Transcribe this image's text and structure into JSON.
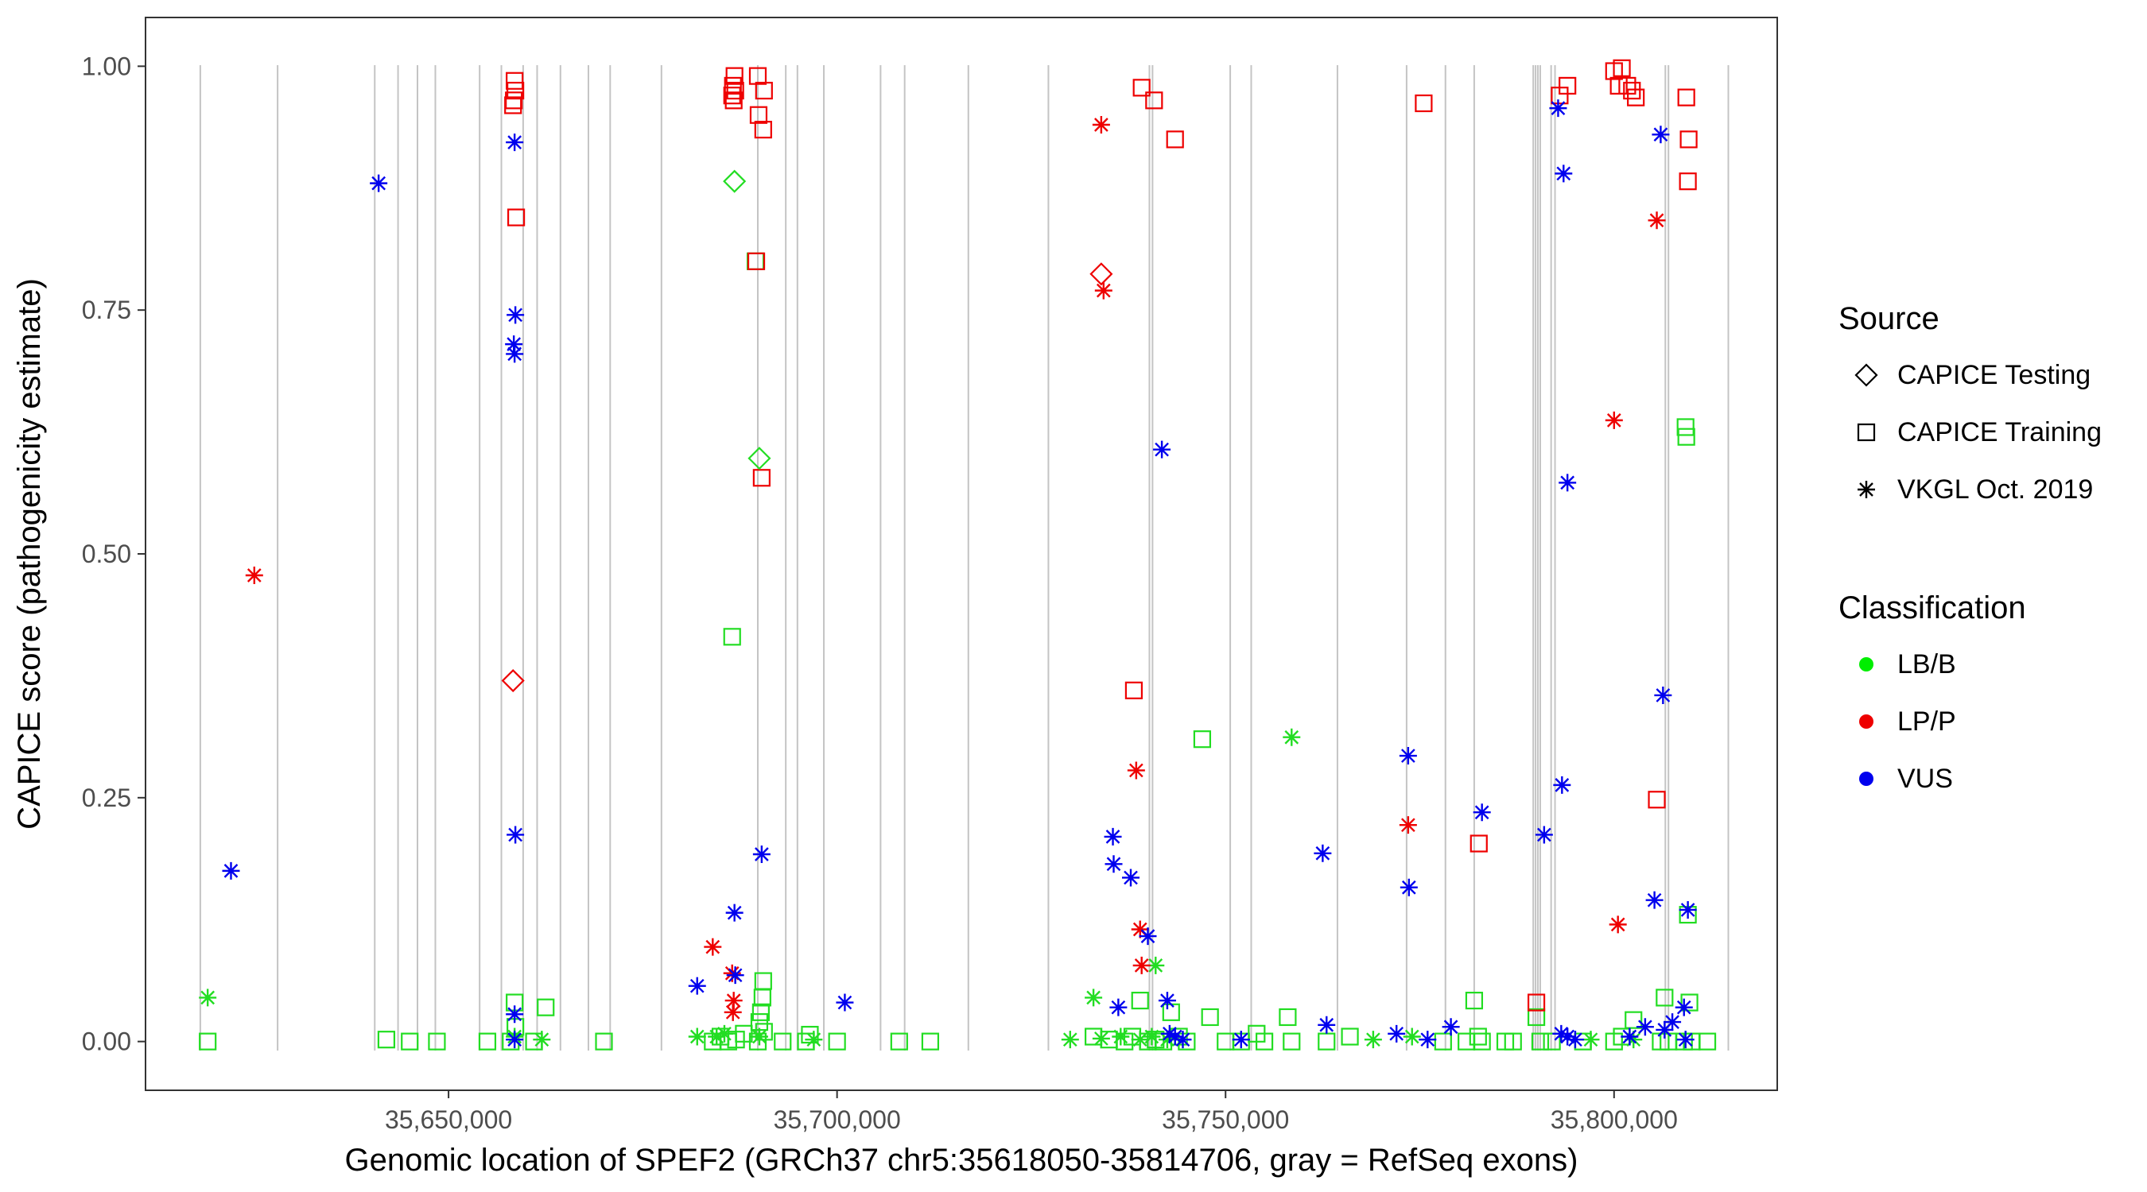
{
  "chart_data": {
    "type": "scatter",
    "title": "",
    "xlabel": "Genomic location of SPEF2 (GRCh37 chr5:35618050-35814706, gray = RefSeq exons)",
    "ylabel": "CAPICE score (pathogenicity estimate)",
    "xlim": [
      35611000,
      35821000
    ],
    "ylim": [
      -0.05,
      1.05
    ],
    "x_ticks": [
      35650000,
      35700000,
      35750000,
      35800000
    ],
    "x_tick_labels": [
      "35,650,000",
      "35,700,000",
      "35,750,000",
      "35,800,000"
    ],
    "y_ticks": [
      0.0,
      0.25,
      0.5,
      0.75,
      1.0
    ],
    "y_tick_labels": [
      "0.00",
      "0.25",
      "0.50",
      "0.75",
      "1.00"
    ],
    "grid": false,
    "legend_position": "right",
    "exons": [
      35618050,
      35628000,
      35640500,
      35643500,
      35646000,
      35648300,
      35654000,
      35656800,
      35659600,
      35661400,
      35664400,
      35668000,
      35670800,
      35677400,
      35689800,
      35693400,
      35694900,
      35698300,
      35705600,
      35708700,
      35716900,
      35727200,
      35740200,
      35740600,
      35750600,
      35753300,
      35764400,
      35773300,
      35778300,
      35782000,
      35789600,
      35789900,
      35790200,
      35790500,
      35791900,
      35792400,
      35806600,
      35807000,
      35814706
    ],
    "legends": {
      "source": {
        "title": "Source",
        "items": [
          {
            "label": "CAPICE Testing",
            "shape": "diamond"
          },
          {
            "label": "CAPICE Training",
            "shape": "square"
          },
          {
            "label": "VKGL Oct. 2019",
            "shape": "asterisk"
          }
        ]
      },
      "classification": {
        "title": "Classification",
        "items": [
          {
            "label": "LB/B",
            "color": "#00ee00"
          },
          {
            "label": "LP/P",
            "color": "#ee0000"
          },
          {
            "label": "VUS",
            "color": "#0000ee"
          }
        ]
      }
    },
    "series": [
      {
        "source": "CAPICE Training",
        "classification": "LB/B",
        "shape": "square",
        "color": "#22dd22",
        "points": [
          [
            35619000,
            0.0
          ],
          [
            35642000,
            0.002
          ],
          [
            35645000,
            0.0
          ],
          [
            35648500,
            0.0
          ],
          [
            35655000,
            0.0
          ],
          [
            35658000,
            0.0
          ],
          [
            35658500,
            0.04
          ],
          [
            35658600,
            0.015
          ],
          [
            35661000,
            0.0
          ],
          [
            35662500,
            0.035
          ],
          [
            35670000,
            0.0
          ],
          [
            35684000,
            0.0
          ],
          [
            35685000,
            0.005
          ],
          [
            35686000,
            0.0
          ],
          [
            35686500,
            0.415
          ],
          [
            35687000,
            0.002
          ],
          [
            35688000,
            0.008
          ],
          [
            35689500,
            0.8
          ],
          [
            35689800,
            0.0
          ],
          [
            35690000,
            0.02
          ],
          [
            35690200,
            0.03
          ],
          [
            35690400,
            0.045
          ],
          [
            35690500,
            0.062
          ],
          [
            35690600,
            0.01
          ],
          [
            35693000,
            0.0
          ],
          [
            35696000,
            0.0
          ],
          [
            35696500,
            0.007
          ],
          [
            35700000,
            0.0
          ],
          [
            35708000,
            0.0
          ],
          [
            35712000,
            0.0
          ],
          [
            35733000,
            0.005
          ],
          [
            35735000,
            0.002
          ],
          [
            35737000,
            0.0
          ],
          [
            35738000,
            0.005
          ],
          [
            35739000,
            0.042
          ],
          [
            35740000,
            0.0
          ],
          [
            35741000,
            0.002
          ],
          [
            35742000,
            0.0
          ],
          [
            35743000,
            0.03
          ],
          [
            35744000,
            0.005
          ],
          [
            35745000,
            0.0
          ],
          [
            35747000,
            0.31
          ],
          [
            35748000,
            0.025
          ],
          [
            35750000,
            0.0
          ],
          [
            35752000,
            0.0
          ],
          [
            35754000,
            0.008
          ],
          [
            35755000,
            0.0
          ],
          [
            35758000,
            0.025
          ],
          [
            35758500,
            0.0
          ],
          [
            35763000,
            0.0
          ],
          [
            35766000,
            0.005
          ],
          [
            35778000,
            0.0
          ],
          [
            35781000,
            0.0
          ],
          [
            35782000,
            0.042
          ],
          [
            35782500,
            0.005
          ],
          [
            35783000,
            0.0
          ],
          [
            35786000,
            0.0
          ],
          [
            35787000,
            0.0
          ],
          [
            35790000,
            0.025
          ],
          [
            35790500,
            0.0
          ],
          [
            35792000,
            0.0
          ],
          [
            35796000,
            0.0
          ],
          [
            35800000,
            0.0
          ],
          [
            35801000,
            0.005
          ],
          [
            35802500,
            0.022
          ],
          [
            35806000,
            0.0
          ],
          [
            35806500,
            0.045
          ],
          [
            35807000,
            0.0
          ],
          [
            35809000,
            0.0
          ],
          [
            35809200,
            0.63
          ],
          [
            35809300,
            0.62
          ],
          [
            35809500,
            0.13
          ],
          [
            35809700,
            0.04
          ],
          [
            35810000,
            0.0
          ],
          [
            35812000,
            0.0
          ]
        ]
      },
      {
        "source": "CAPICE Training",
        "classification": "LP/P",
        "shape": "square",
        "color": "#ee0000",
        "points": [
          [
            35658500,
            0.985
          ],
          [
            35658600,
            0.975
          ],
          [
            35658400,
            0.965
          ],
          [
            35658300,
            0.96
          ],
          [
            35658700,
            0.845
          ],
          [
            35686800,
            0.99
          ],
          [
            35686600,
            0.98
          ],
          [
            35686900,
            0.975
          ],
          [
            35686500,
            0.97
          ],
          [
            35686700,
            0.965
          ],
          [
            35689800,
            0.99
          ],
          [
            35690600,
            0.975
          ],
          [
            35689900,
            0.95
          ],
          [
            35690500,
            0.935
          ],
          [
            35689600,
            0.8
          ],
          [
            35690300,
            0.578
          ],
          [
            35738200,
            0.36
          ],
          [
            35739200,
            0.978
          ],
          [
            35740800,
            0.965
          ],
          [
            35743500,
            0.925
          ],
          [
            35775500,
            0.962
          ],
          [
            35782600,
            0.203
          ],
          [
            35790000,
            0.04
          ],
          [
            35793000,
            0.97
          ],
          [
            35794000,
            0.98
          ],
          [
            35800000,
            0.995
          ],
          [
            35800600,
            0.98
          ],
          [
            35801000,
            0.998
          ],
          [
            35801700,
            0.98
          ],
          [
            35802300,
            0.975
          ],
          [
            35802800,
            0.968
          ],
          [
            35805500,
            0.248
          ],
          [
            35809300,
            0.968
          ],
          [
            35809600,
            0.925
          ],
          [
            35809500,
            0.882
          ]
        ]
      },
      {
        "source": "CAPICE Testing",
        "classification": "LB/B",
        "shape": "diamond",
        "color": "#22dd22",
        "points": [
          [
            35686800,
            0.882
          ],
          [
            35690000,
            0.598
          ]
        ]
      },
      {
        "source": "CAPICE Testing",
        "classification": "LP/P",
        "shape": "diamond",
        "color": "#ee0000",
        "points": [
          [
            35658300,
            0.37
          ],
          [
            35734000,
            0.787
          ]
        ]
      },
      {
        "source": "VKGL Oct. 2019",
        "classification": "LB/B",
        "shape": "asterisk",
        "color": "#22dd22",
        "points": [
          [
            35619000,
            0.045
          ],
          [
            35658500,
            0.005
          ],
          [
            35662000,
            0.002
          ],
          [
            35682000,
            0.005
          ],
          [
            35684500,
            0.005
          ],
          [
            35685500,
            0.008
          ],
          [
            35690000,
            0.005
          ],
          [
            35697000,
            0.002
          ],
          [
            35730000,
            0.002
          ],
          [
            35733000,
            0.045
          ],
          [
            35734000,
            0.003
          ],
          [
            35736500,
            0.005
          ],
          [
            35739000,
            0.002
          ],
          [
            35740500,
            0.005
          ],
          [
            35741000,
            0.078
          ],
          [
            35742500,
            0.002
          ],
          [
            35758500,
            0.312
          ],
          [
            35769000,
            0.002
          ],
          [
            35774000,
            0.005
          ],
          [
            35797000,
            0.002
          ],
          [
            35802500,
            0.002
          ]
        ]
      },
      {
        "source": "VKGL Oct. 2019",
        "classification": "LP/P",
        "shape": "asterisk",
        "color": "#ee0000",
        "points": [
          [
            35625000,
            0.478
          ],
          [
            35684000,
            0.097
          ],
          [
            35686500,
            0.07
          ],
          [
            35686700,
            0.042
          ],
          [
            35686600,
            0.03
          ],
          [
            35734000,
            0.94
          ],
          [
            35734300,
            0.77
          ],
          [
            35738500,
            0.278
          ],
          [
            35739000,
            0.115
          ],
          [
            35739200,
            0.078
          ],
          [
            35773500,
            0.222
          ],
          [
            35800000,
            0.637
          ],
          [
            35800500,
            0.12
          ],
          [
            35805500,
            0.842
          ]
        ]
      },
      {
        "source": "VKGL Oct. 2019",
        "classification": "VUS",
        "shape": "asterisk",
        "color": "#0000ee",
        "points": [
          [
            35622000,
            0.175
          ],
          [
            35641000,
            0.88
          ],
          [
            35658500,
            0.922
          ],
          [
            35658600,
            0.745
          ],
          [
            35658400,
            0.715
          ],
          [
            35658500,
            0.705
          ],
          [
            35658600,
            0.212
          ],
          [
            35658500,
            0.028
          ],
          [
            35658500,
            0.002
          ],
          [
            35682000,
            0.057
          ],
          [
            35686800,
            0.132
          ],
          [
            35686900,
            0.068
          ],
          [
            35690300,
            0.192
          ],
          [
            35701000,
            0.04
          ],
          [
            35735500,
            0.21
          ],
          [
            35735600,
            0.182
          ],
          [
            35736200,
            0.035
          ],
          [
            35737800,
            0.168
          ],
          [
            35740000,
            0.108
          ],
          [
            35741800,
            0.607
          ],
          [
            35742500,
            0.042
          ],
          [
            35742800,
            0.008
          ],
          [
            35743500,
            0.005
          ],
          [
            35744500,
            0.002
          ],
          [
            35752000,
            0.002
          ],
          [
            35762500,
            0.193
          ],
          [
            35763000,
            0.017
          ],
          [
            35772000,
            0.008
          ],
          [
            35773500,
            0.293
          ],
          [
            35773600,
            0.158
          ],
          [
            35776000,
            0.002
          ],
          [
            35779000,
            0.015
          ],
          [
            35783000,
            0.235
          ],
          [
            35791000,
            0.212
          ],
          [
            35792800,
            0.957
          ],
          [
            35793500,
            0.89
          ],
          [
            35794000,
            0.573
          ],
          [
            35793300,
            0.263
          ],
          [
            35793200,
            0.008
          ],
          [
            35794000,
            0.005
          ],
          [
            35795000,
            0.002
          ],
          [
            35802000,
            0.005
          ],
          [
            35804000,
            0.015
          ],
          [
            35805200,
            0.145
          ],
          [
            35806000,
            0.93
          ],
          [
            35806300,
            0.355
          ],
          [
            35806500,
            0.012
          ],
          [
            35807500,
            0.02
          ],
          [
            35809000,
            0.035
          ],
          [
            35809500,
            0.135
          ],
          [
            35809200,
            0.002
          ]
        ]
      }
    ]
  }
}
